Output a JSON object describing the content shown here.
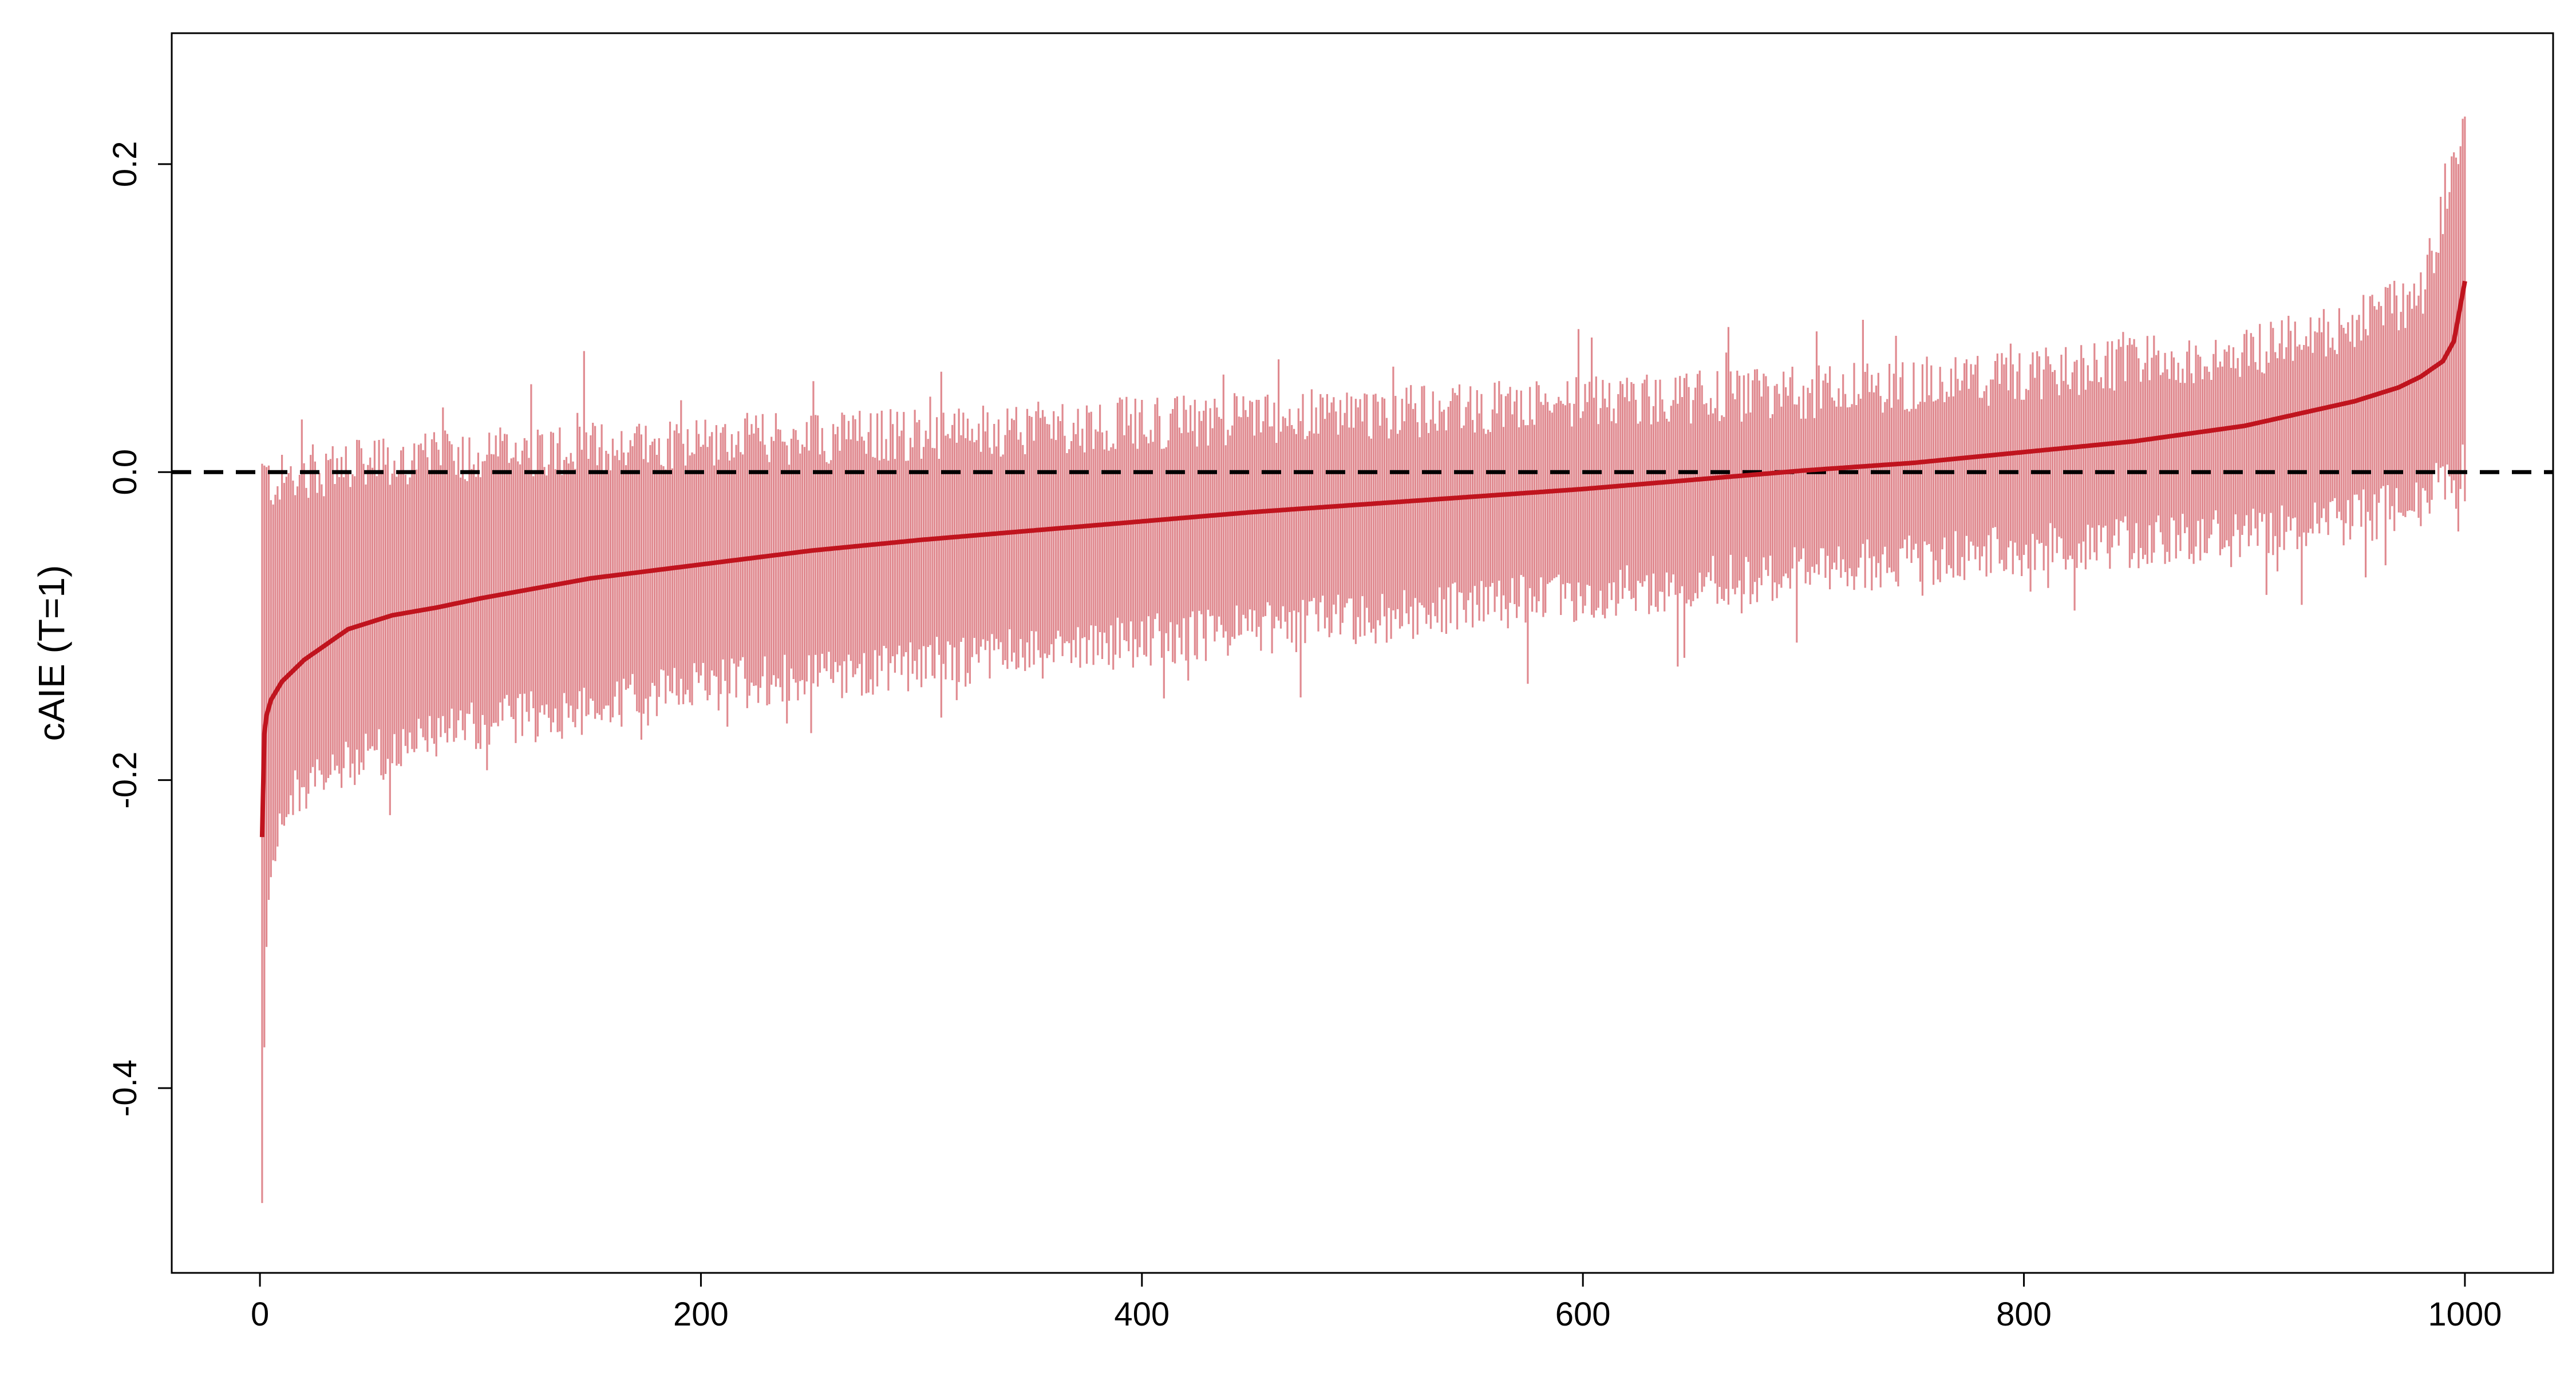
{
  "chart_data": {
    "type": "line",
    "title": "",
    "xlabel": "",
    "ylabel": "cAIE (T=1)",
    "xlim": [
      -40,
      1040
    ],
    "ylim": [
      -0.52,
      0.285
    ],
    "xticks": [
      0,
      200,
      400,
      600,
      800,
      1000
    ],
    "xtick_labels": [
      "0",
      "200",
      "400",
      "600",
      "800",
      "1000"
    ],
    "yticks": [
      -0.4,
      -0.2,
      0.0,
      0.2
    ],
    "ytick_labels": [
      "-0.4",
      "-0.2",
      "0.0",
      "0.2"
    ],
    "n_points": 1000,
    "reference_line": {
      "y": 0.0,
      "style": "dashed",
      "color": "#000000"
    },
    "series": [
      {
        "kind": "point_estimate_line",
        "color": "#C0141E",
        "x": [
          1,
          2,
          3,
          5,
          10,
          20,
          30,
          40,
          60,
          80,
          100,
          150,
          200,
          250,
          300,
          350,
          400,
          450,
          500,
          550,
          600,
          650,
          700,
          750,
          800,
          850,
          900,
          950,
          970,
          980,
          990,
          995,
          1000
        ],
        "y": [
          -0.237,
          -0.17,
          -0.158,
          -0.148,
          -0.136,
          -0.122,
          -0.112,
          -0.102,
          -0.093,
          -0.088,
          -0.082,
          -0.069,
          -0.06,
          -0.051,
          -0.044,
          -0.038,
          -0.032,
          -0.026,
          -0.021,
          -0.016,
          -0.011,
          -0.005,
          0.001,
          0.006,
          0.013,
          0.02,
          0.03,
          0.046,
          0.055,
          0.062,
          0.072,
          0.085,
          0.124
        ]
      },
      {
        "kind": "interval_upper_envelope",
        "color": "#E08A90",
        "x": [
          1,
          5,
          20,
          50,
          100,
          200,
          300,
          400,
          500,
          600,
          700,
          800,
          900,
          950,
          980,
          1000
        ],
        "y": [
          0.0,
          -0.008,
          0.0,
          0.005,
          0.012,
          0.02,
          0.025,
          0.032,
          0.038,
          0.045,
          0.052,
          0.062,
          0.078,
          0.095,
          0.115,
          0.22
        ]
      },
      {
        "kind": "interval_lower_envelope",
        "color": "#E08A90",
        "x": [
          1,
          3,
          5,
          10,
          20,
          50,
          100,
          200,
          300,
          400,
          500,
          600,
          700,
          800,
          900,
          950,
          980,
          1000
        ],
        "y": [
          -0.47,
          -0.3,
          -0.25,
          -0.22,
          -0.205,
          -0.185,
          -0.165,
          -0.14,
          -0.125,
          -0.11,
          -0.095,
          -0.08,
          -0.065,
          -0.05,
          -0.04,
          -0.03,
          -0.02,
          0.005
        ]
      }
    ]
  }
}
